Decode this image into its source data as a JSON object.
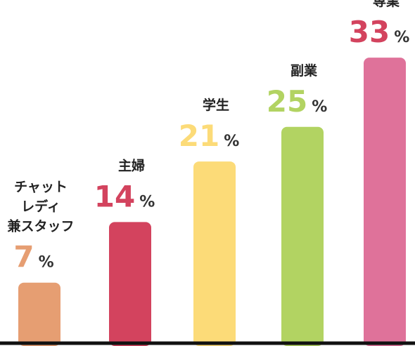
{
  "chart_data": {
    "type": "bar",
    "categories": [
      [
        "チャット",
        "レディ",
        "兼スタッフ"
      ],
      [
        "主婦"
      ],
      [
        "学生"
      ],
      [
        "副業"
      ],
      [
        "専業"
      ]
    ],
    "values": [
      7,
      14,
      21,
      25,
      33
    ],
    "unit": "%",
    "colors": [
      "#E69E72",
      "#D3435E",
      "#FCDB78",
      "#B2D362",
      "#DF729A"
    ],
    "value_colors": [
      "#E69E72",
      "#D3435E",
      "#FCDB78",
      "#B2D362",
      "#D3435E"
    ],
    "ylim": [
      0,
      35
    ],
    "grid": false,
    "legend": "none"
  }
}
